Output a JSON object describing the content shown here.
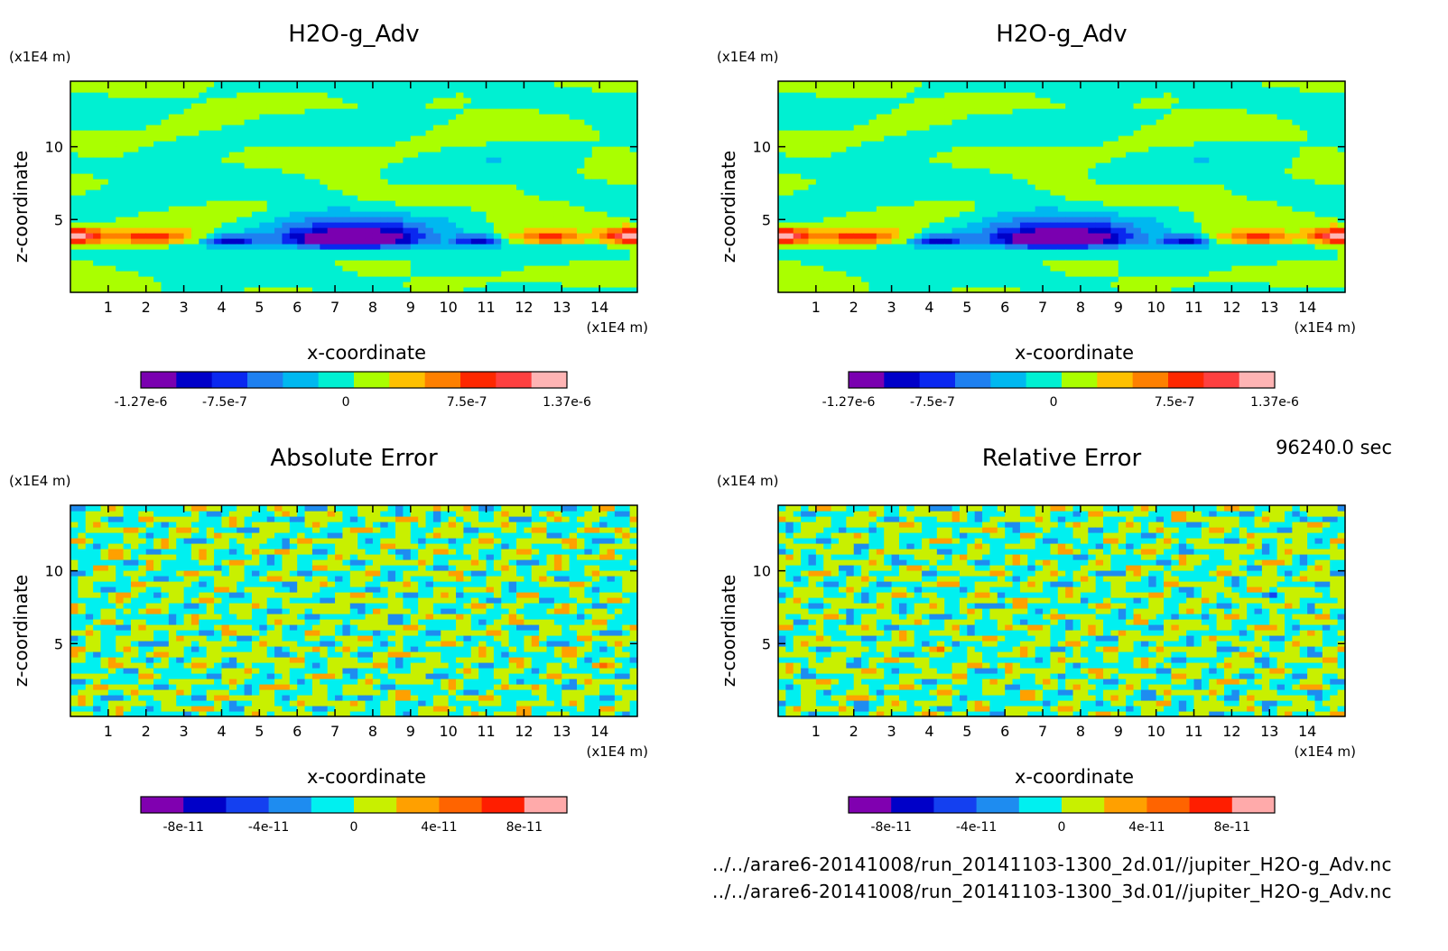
{
  "time_label": "96240.0 sec",
  "footer": {
    "file_2d": "../../arare6-20141008/run_20141103-1300_2d.01//jupiter_H2O-g_Adv.nc",
    "file_3d": "../../arare6-20141008/run_20141103-1300_3d.01//jupiter_H2O-g_Adv.nc"
  },
  "chart_data": [
    {
      "type": "heatmap",
      "title": "H2O-g_Adv",
      "xlabel": "x-coordinate",
      "ylabel": "z-coordinate",
      "x_unit": "(x1E4 m)",
      "y_unit": "(x1E4 m)",
      "xlim": [
        0,
        15
      ],
      "ylim": [
        0,
        14.5
      ],
      "xticks": [
        1,
        2,
        3,
        4,
        5,
        6,
        7,
        8,
        9,
        10,
        11,
        12,
        13,
        14
      ],
      "yticks": [
        5,
        10
      ],
      "field": "h2o",
      "colorbar": {
        "colors": [
          "#7a00b0",
          "#0000c8",
          "#0a28f0",
          "#1e80f0",
          "#00b8f0",
          "#00f0d2",
          "#aaff00",
          "#ffc000",
          "#ff8000",
          "#ff2800",
          "#ff4040",
          "#ffb4b4"
        ],
        "levels_start": -1.27e-06,
        "levels_end": 1.37e-06,
        "tick_labels": [
          "-1.27e-6",
          "-7.5e-7",
          "0",
          "7.5e-7",
          "1.37e-6"
        ],
        "tick_values": [
          -1.27e-06,
          -7.5e-07,
          0,
          7.5e-07,
          1.37e-06
        ]
      }
    },
    {
      "type": "heatmap",
      "title": "H2O-g_Adv",
      "xlabel": "x-coordinate",
      "ylabel": "z-coordinate",
      "x_unit": "(x1E4 m)",
      "y_unit": "(x1E4 m)",
      "xlim": [
        0,
        15
      ],
      "ylim": [
        0,
        14.5
      ],
      "xticks": [
        1,
        2,
        3,
        4,
        5,
        6,
        7,
        8,
        9,
        10,
        11,
        12,
        13,
        14
      ],
      "yticks": [
        5,
        10
      ],
      "field": "h2o",
      "colorbar": {
        "colors": [
          "#7a00b0",
          "#0000c8",
          "#0a28f0",
          "#1e80f0",
          "#00b8f0",
          "#00f0d2",
          "#aaff00",
          "#ffc000",
          "#ff8000",
          "#ff2800",
          "#ff4040",
          "#ffb4b4"
        ],
        "levels_start": -1.27e-06,
        "levels_end": 1.37e-06,
        "tick_labels": [
          "-1.27e-6",
          "-7.5e-7",
          "0",
          "7.5e-7",
          "1.37e-6"
        ],
        "tick_values": [
          -1.27e-06,
          -7.5e-07,
          0,
          7.5e-07,
          1.37e-06
        ]
      }
    },
    {
      "type": "heatmap",
      "title": "Absolute Error",
      "xlabel": "x-coordinate",
      "ylabel": "z-coordinate",
      "x_unit": "(x1E4 m)",
      "y_unit": "(x1E4 m)",
      "xlim": [
        0,
        15
      ],
      "ylim": [
        0,
        14.5
      ],
      "xticks": [
        1,
        2,
        3,
        4,
        5,
        6,
        7,
        8,
        9,
        10,
        11,
        12,
        13,
        14
      ],
      "yticks": [
        5,
        10
      ],
      "field": "noise",
      "colorbar": {
        "colors": [
          "#8000b0",
          "#0000c8",
          "#1440f0",
          "#1e8cf0",
          "#00f0f0",
          "#c8f000",
          "#ffa000",
          "#ff6400",
          "#ff1e00",
          "#ffaaaa"
        ],
        "levels_start": -1e-10,
        "levels_end": 1e-10,
        "tick_labels": [
          "-8e-11",
          "-4e-11",
          "0",
          "4e-11",
          "8e-11"
        ],
        "tick_values": [
          -8e-11,
          -4e-11,
          0,
          4e-11,
          8e-11
        ]
      }
    },
    {
      "type": "heatmap",
      "title": "Relative Error",
      "xlabel": "x-coordinate",
      "ylabel": "z-coordinate",
      "x_unit": "(x1E4 m)",
      "y_unit": "(x1E4 m)",
      "xlim": [
        0,
        15
      ],
      "ylim": [
        0,
        14.5
      ],
      "xticks": [
        1,
        2,
        3,
        4,
        5,
        6,
        7,
        8,
        9,
        10,
        11,
        12,
        13,
        14
      ],
      "yticks": [
        5,
        10
      ],
      "field": "noise2",
      "colorbar": {
        "colors": [
          "#8000b0",
          "#0000c8",
          "#1440f0",
          "#1e8cf0",
          "#00f0f0",
          "#c8f000",
          "#ffa000",
          "#ff6400",
          "#ff1e00",
          "#ffaaaa"
        ],
        "levels_start": -1e-10,
        "levels_end": 1e-10,
        "tick_labels": [
          "-8e-11",
          "-4e-11",
          "0",
          "4e-11",
          "8e-11"
        ],
        "tick_values": [
          -8e-11,
          -4e-11,
          0,
          4e-11,
          8e-11
        ]
      }
    }
  ]
}
